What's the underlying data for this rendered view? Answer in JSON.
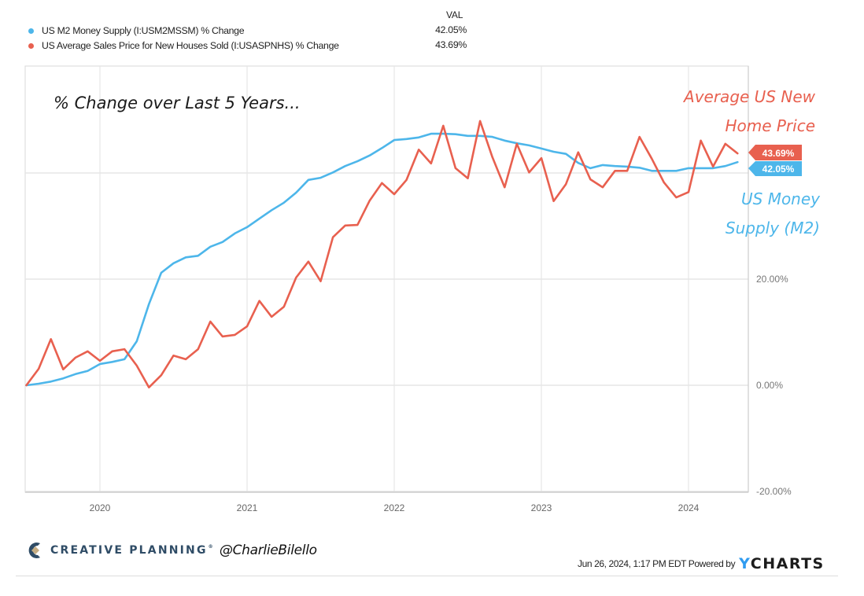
{
  "legend": {
    "header": "VAL",
    "items": [
      {
        "label": "US M2 Money Supply (I:USM2MSSM) % Change",
        "value": "42.05%",
        "color": "#4db6ea"
      },
      {
        "label": "US Average Sales Price for New Houses Sold (I:USASPNHS) % Change",
        "value": "43.69%",
        "color": "#e8604f"
      }
    ]
  },
  "annotations": {
    "title": "% Change over Last 5 Years...",
    "red_label_line1": "Average US New",
    "red_label_line2": "Home Price",
    "blue_label_line1": "US Money",
    "blue_label_line2": "Supply (M2)"
  },
  "end_tags": {
    "red": "43.69%",
    "blue": "42.05%"
  },
  "footer": {
    "brand": "CREATIVE PLANNING",
    "brand_mark": "®",
    "handle": "@CharlieBilello",
    "timestamp": "Jun 26, 2024, 1:17 PM EDT Powered by",
    "ycharts_y": "Y",
    "ycharts_rest": "CHARTS"
  },
  "chart_data": {
    "type": "line",
    "title": "% Change over Last 5 Years...",
    "xlabel": "",
    "ylabel": "",
    "ylim": [
      -20,
      60
    ],
    "y_ticks": [
      -20,
      0,
      20,
      40
    ],
    "y_tick_labels": [
      "-20.00%",
      "0.00%",
      "20.00%",
      ""
    ],
    "x_tick_labels": [
      "2020",
      "2021",
      "2022",
      "2023",
      "2024"
    ],
    "grid": true,
    "legend_position": "top-left",
    "x": [
      "2019-07",
      "2019-08",
      "2019-09",
      "2019-10",
      "2019-11",
      "2019-12",
      "2020-01",
      "2020-02",
      "2020-03",
      "2020-04",
      "2020-05",
      "2020-06",
      "2020-07",
      "2020-08",
      "2020-09",
      "2020-10",
      "2020-11",
      "2020-12",
      "2021-01",
      "2021-02",
      "2021-03",
      "2021-04",
      "2021-05",
      "2021-06",
      "2021-07",
      "2021-08",
      "2021-09",
      "2021-10",
      "2021-11",
      "2021-12",
      "2022-01",
      "2022-02",
      "2022-03",
      "2022-04",
      "2022-05",
      "2022-06",
      "2022-07",
      "2022-08",
      "2022-09",
      "2022-10",
      "2022-11",
      "2022-12",
      "2023-01",
      "2023-02",
      "2023-03",
      "2023-04",
      "2023-05",
      "2023-06",
      "2023-07",
      "2023-08",
      "2023-09",
      "2023-10",
      "2023-11",
      "2023-12",
      "2024-01",
      "2024-02",
      "2024-03",
      "2024-04",
      "2024-05"
    ],
    "series": [
      {
        "name": "US M2 Money Supply (I:USM2MSSM) % Change",
        "color": "#4db6ea",
        "last_value": 42.05,
        "values": [
          0.0,
          0.3,
          0.7,
          1.3,
          2.1,
          2.7,
          4.0,
          4.4,
          4.9,
          8.3,
          15.3,
          21.2,
          23.0,
          24.1,
          24.4,
          26.1,
          27.0,
          28.6,
          29.8,
          31.4,
          33.0,
          34.4,
          36.3,
          38.7,
          39.1,
          40.1,
          41.3,
          42.2,
          43.3,
          44.7,
          46.2,
          46.4,
          46.7,
          47.4,
          47.4,
          47.3,
          47.0,
          47.0,
          46.8,
          46.1,
          45.6,
          45.2,
          44.6,
          44.0,
          43.6,
          41.9,
          40.9,
          41.5,
          41.3,
          41.2,
          41.0,
          40.4,
          40.4,
          40.4,
          40.9,
          40.9,
          40.9,
          41.3,
          42.05
        ]
      },
      {
        "name": "US Average Sales Price for New Houses Sold (I:USASPNHS) % Change",
        "color": "#e8604f",
        "last_value": 43.69,
        "values": [
          0.0,
          3.1,
          8.7,
          3.0,
          5.2,
          6.4,
          4.6,
          6.4,
          6.8,
          3.7,
          -0.4,
          1.9,
          5.6,
          4.9,
          6.8,
          12.0,
          9.2,
          9.5,
          11.1,
          15.9,
          12.9,
          14.8,
          20.3,
          23.3,
          19.6,
          27.9,
          30.1,
          30.2,
          34.8,
          38.1,
          36.0,
          38.7,
          44.4,
          41.8,
          48.9,
          40.9,
          39.0,
          49.8,
          43.0,
          37.3,
          45.5,
          40.1,
          42.8,
          34.7,
          37.9,
          43.9,
          38.8,
          37.3,
          40.4,
          40.4,
          46.8,
          42.7,
          38.2,
          35.4,
          36.4,
          46.1,
          41.2,
          45.5,
          43.69
        ]
      }
    ]
  }
}
